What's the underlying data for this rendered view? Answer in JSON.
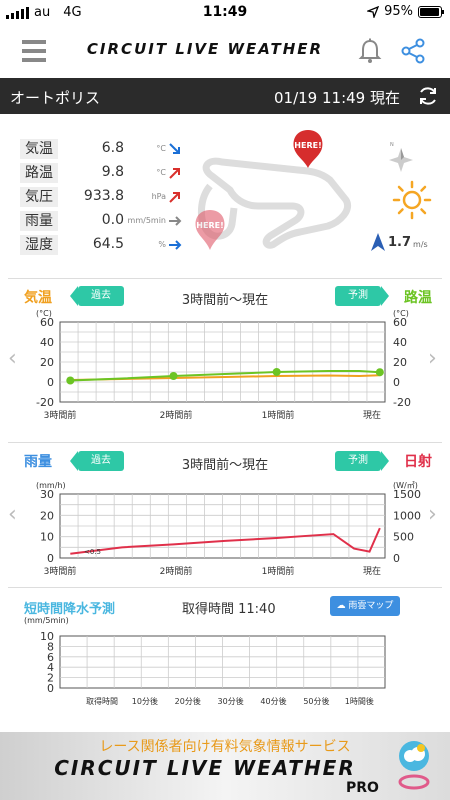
{
  "status_bar": {
    "carrier": "au",
    "network": "4G",
    "time": "11:49",
    "battery": "95%",
    "battery_level": 0.95
  },
  "header": {
    "logo": "CIRCUIT LIVE WEATHER"
  },
  "location": {
    "name": "オートポリス",
    "datetime": "01/19 11:49 現在"
  },
  "weather": [
    {
      "label": "気温",
      "value": "6.8",
      "unit": "°C",
      "trend": "down",
      "color": "#1a6fd6"
    },
    {
      "label": "路温",
      "value": "9.8",
      "unit": "°C",
      "trend": "up",
      "color": "#d9302c"
    },
    {
      "label": "気圧",
      "value": "933.8",
      "unit": "hPa",
      "trend": "up",
      "color": "#d9302c"
    },
    {
      "label": "雨量",
      "value": "0.0",
      "unit": "mm/5min",
      "trend": "flat",
      "color": "#888888"
    },
    {
      "label": "湿度",
      "value": "64.5",
      "unit": "%",
      "trend": "flat",
      "color": "#1a6fd6"
    }
  ],
  "track": {
    "marker_top": "HERE!",
    "marker_bottom": "HERE!"
  },
  "wind": {
    "speed": "1.7",
    "unit": "m/s"
  },
  "compass_label": "N",
  "temp_panel": {
    "left_label": "気温",
    "right_label": "路温",
    "past_button": "過去",
    "forecast_button": "予測",
    "range": "3時間前〜現在",
    "left_unit": "(°C)",
    "right_unit": "(°C)"
  },
  "rain_panel": {
    "left_label": "雨量",
    "right_label": "日射",
    "past_button": "過去",
    "forecast_button": "予測",
    "range": "3時間前〜現在",
    "left_unit": "(mm/h)",
    "right_unit": "(W/㎡)",
    "rain_note": "<0.5"
  },
  "short_forecast": {
    "title": "短時間降水予測",
    "acquired": "取得時間 11:40",
    "button": "雨雲マップ",
    "unit": "(mm/5min)"
  },
  "banner": {
    "subtitle": "レース関係者向け有料気象情報サービス",
    "title": "CIRCUIT LIVE WEATHER",
    "pro": "PRO"
  },
  "chart_data": [
    {
      "type": "line",
      "title": "3時間前〜現在",
      "x": [
        "3時間前",
        "2時間前",
        "1時間前",
        "現在"
      ],
      "x_positions": [
        0,
        1,
        2,
        3
      ],
      "ylim_left": [
        -20,
        60
      ],
      "ylim_right": [
        -20,
        60
      ],
      "yticks_left": [
        -20,
        0,
        20,
        40,
        60
      ],
      "yticks_right": [
        -20,
        0,
        20,
        40,
        60
      ],
      "ylabel_left": "(°C)",
      "ylabel_right": "(°C)",
      "grid": true,
      "series": [
        {
          "name": "気温",
          "color": "#f0a020",
          "axis": "left",
          "x": [
            0,
            0.5,
            1,
            1.5,
            2,
            2.5,
            2.8,
            3
          ],
          "values": [
            2,
            3,
            4,
            5,
            6,
            6.5,
            6,
            6.8
          ]
        },
        {
          "name": "路温",
          "color": "#6cc424",
          "axis": "right",
          "x": [
            0,
            0.5,
            1,
            1.5,
            2,
            2.5,
            2.8,
            3
          ],
          "values": [
            1.5,
            3.5,
            6,
            8,
            10,
            11,
            11,
            9.8
          ],
          "markers": [
            0,
            1,
            2,
            3
          ]
        }
      ]
    },
    {
      "type": "line",
      "title": "3時間前〜現在",
      "x": [
        "3時間前",
        "2時間前",
        "1時間前",
        "現在"
      ],
      "ylim_left": [
        0,
        30
      ],
      "ylim_right": [
        0,
        1500
      ],
      "yticks_left": [
        0,
        10,
        20,
        30
      ],
      "yticks_right": [
        0,
        500,
        1000,
        1500
      ],
      "ylabel_left": "(mm/h)",
      "ylabel_right": "(W/㎡)",
      "grid": true,
      "series": [
        {
          "name": "日射",
          "color": "#e0304a",
          "axis": "right",
          "x": [
            0,
            0.5,
            1,
            1.5,
            2,
            2.3,
            2.55,
            2.75,
            2.9,
            3.0
          ],
          "values": [
            100,
            250,
            320,
            400,
            470,
            520,
            560,
            220,
            150,
            700
          ]
        }
      ]
    },
    {
      "type": "bar",
      "title": "短時間降水予測",
      "categories": [
        "取得時間",
        "10分後",
        "20分後",
        "30分後",
        "40分後",
        "50分後",
        "1時間後"
      ],
      "values": [
        0,
        0,
        0,
        0,
        0,
        0,
        0
      ],
      "ylim": [
        0,
        10
      ],
      "yticks": [
        0,
        2,
        4,
        6,
        8,
        10
      ],
      "ylabel": "(mm/5min)",
      "grid": true
    }
  ]
}
